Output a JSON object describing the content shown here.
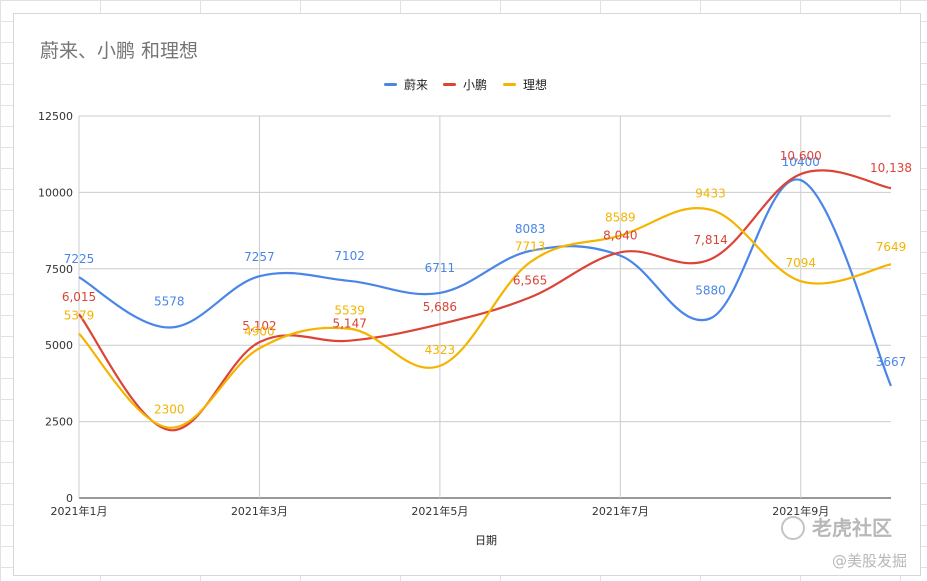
{
  "chart_data": {
    "type": "line",
    "title": "蔚来、小鹏 和理想",
    "xlabel": "日期",
    "ylabel": "",
    "ylim": [
      0,
      12500
    ],
    "y_ticks": [
      "0",
      "2500",
      "5000",
      "7500",
      "10000",
      "12500"
    ],
    "x_tick_labels": [
      "2021年1月",
      "2021年3月",
      "2021年5月",
      "2021年7月",
      "2021年9月"
    ],
    "legend_position": "top",
    "grid": true,
    "categories": [
      "2021-01",
      "2021-02",
      "2021-03",
      "2021-04",
      "2021-05",
      "2021-06",
      "2021-07",
      "2021-08",
      "2021-09",
      "2021-10"
    ],
    "series": [
      {
        "name": "蔚来",
        "color": "#4a86e8",
        "values": [
          7225,
          5578,
          7257,
          7102,
          6711,
          8083,
          7931,
          5880,
          10400,
          3667
        ],
        "labels": [
          "7225",
          "5578",
          "7257",
          "7102",
          "6711",
          "8083",
          "",
          "5880",
          "10400",
          "3667"
        ]
      },
      {
        "name": "小鹏",
        "color": "#db4437",
        "values": [
          6015,
          2223,
          5102,
          5147,
          5686,
          6565,
          8040,
          7814,
          10600,
          10138
        ],
        "labels": [
          "6,015",
          "",
          "5,102",
          "5,147",
          "5,686",
          "6,565",
          "8,040",
          "7,814",
          "10,600",
          "10,138"
        ]
      },
      {
        "name": "理想",
        "color": "#f4b400",
        "values": [
          5379,
          2300,
          4900,
          5539,
          4323,
          7713,
          8589,
          9433,
          7094,
          7649
        ],
        "labels": [
          "5379",
          "2300",
          "4900",
          "5539",
          "4323",
          "7713",
          "8589",
          "9433",
          "7094",
          "7649"
        ]
      }
    ]
  },
  "watermark": {
    "brand": "老虎社区",
    "handle": "@美股发掘"
  }
}
